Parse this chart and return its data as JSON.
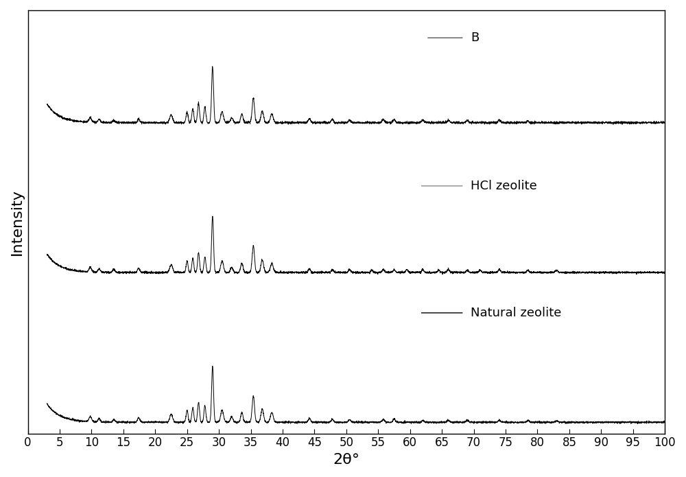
{
  "xlabel": "2θ°",
  "ylabel": "Intensity",
  "xlim": [
    3,
    97
  ],
  "xticks": [
    0,
    5,
    10,
    15,
    20,
    25,
    30,
    35,
    40,
    45,
    50,
    55,
    60,
    65,
    70,
    75,
    80,
    85,
    90,
    95,
    100
  ],
  "curve_color": "#000000",
  "background_color": "#ffffff",
  "legend_labels": [
    "B",
    "HCl zeolite",
    "Natural zeolite"
  ],
  "legend_line_colors": [
    "#555555",
    "#888888",
    "#000000"
  ],
  "offsets": [
    4.0,
    2.0,
    0.0
  ],
  "figsize": [
    10.0,
    6.95
  ],
  "dpi": 100,
  "xlabel_fontsize": 16,
  "ylabel_fontsize": 16,
  "tick_fontsize": 12,
  "legend_fontsize": 13
}
